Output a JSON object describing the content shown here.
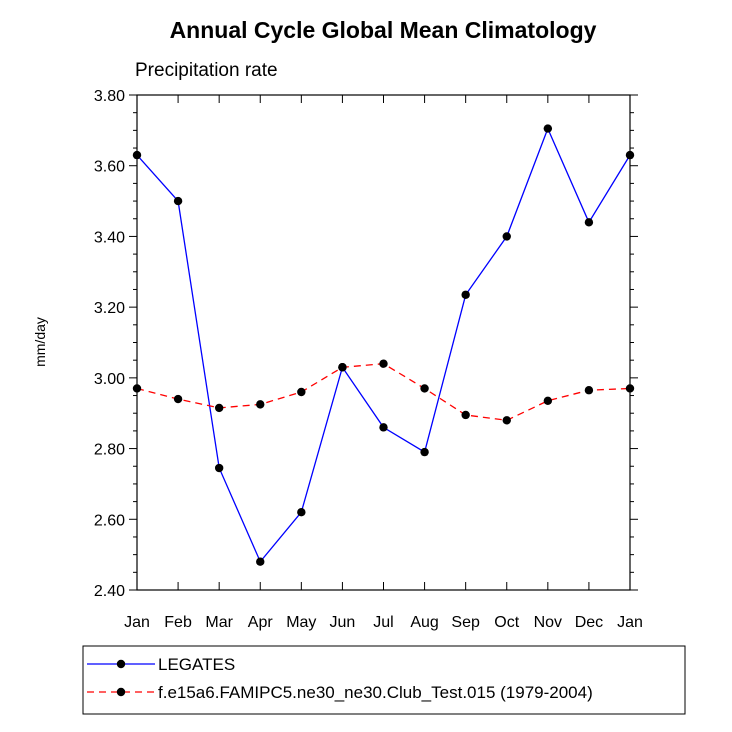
{
  "chart_data": {
    "type": "line",
    "title": "Annual Cycle Global Mean Climatology",
    "subtitle": "Precipitation rate",
    "xlabel": "",
    "ylabel": "mm/day",
    "categories": [
      "Jan",
      "Feb",
      "Mar",
      "Apr",
      "May",
      "Jun",
      "Jul",
      "Aug",
      "Sep",
      "Oct",
      "Nov",
      "Dec",
      "Jan"
    ],
    "ylim": [
      2.4,
      3.8
    ],
    "yticks": [
      "2.40",
      "2.60",
      "2.80",
      "3.00",
      "3.20",
      "3.40",
      "3.60",
      "3.80"
    ],
    "grid": false,
    "legend_position": "bottom",
    "series": [
      {
        "name": "LEGATES",
        "color": "#0000ff",
        "line_style": "solid",
        "values": [
          3.63,
          3.5,
          2.745,
          2.48,
          2.62,
          3.03,
          2.86,
          2.79,
          3.235,
          3.4,
          3.705,
          3.44,
          3.63
        ]
      },
      {
        "name": "f.e15a6.FAMIPC5.ne30_ne30.Club_Test.015 (1979-2004)",
        "color": "#ff0000",
        "line_style": "dashed",
        "values": [
          2.97,
          2.94,
          2.915,
          2.925,
          2.96,
          3.03,
          3.04,
          2.97,
          2.895,
          2.88,
          2.935,
          2.965,
          2.97
        ]
      }
    ]
  }
}
